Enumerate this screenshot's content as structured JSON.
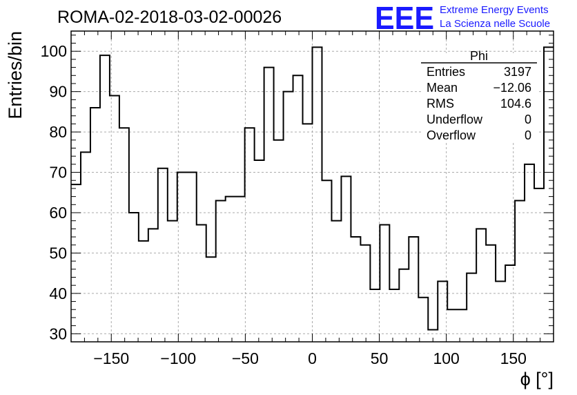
{
  "chart_data": {
    "type": "histogram",
    "title": "ROMA-02-2018-03-02-00026",
    "xlabel": "ϕ [°]",
    "ylabel": "Entries/bin",
    "xlim": [
      -180,
      180
    ],
    "ylim": [
      28,
      105
    ],
    "grid": true,
    "bin_width": 7.2,
    "x_ticks": [
      -150,
      -100,
      -50,
      0,
      50,
      100,
      150
    ],
    "x_tick_labels": [
      "−150",
      "−100",
      "−50",
      "0",
      "50",
      "100",
      "150"
    ],
    "y_ticks": [
      30,
      40,
      50,
      60,
      70,
      80,
      90,
      100
    ],
    "y_tick_labels": [
      "30",
      "40",
      "50",
      "60",
      "70",
      "80",
      "90",
      "100"
    ],
    "values": [
      67,
      75,
      86,
      99,
      89,
      81,
      60,
      53,
      56,
      71,
      58,
      70,
      70,
      57,
      49,
      63,
      64,
      64,
      81,
      73,
      96,
      78,
      90,
      94,
      82,
      101,
      68,
      58,
      69,
      54,
      52,
      41,
      57,
      41,
      46,
      54,
      39,
      31,
      43,
      36,
      36,
      45,
      56,
      52,
      43,
      47,
      63,
      72,
      66,
      101
    ],
    "stats": {
      "name": "Phi",
      "rows": [
        {
          "label": "Entries",
          "value": "3197"
        },
        {
          "label": "Mean",
          "value": "−12.06"
        },
        {
          "label": "RMS",
          "value": "104.6"
        },
        {
          "label": "Underflow",
          "value": "0"
        },
        {
          "label": "Overflow",
          "value": "0"
        }
      ]
    }
  },
  "logo": {
    "mark": "EEE",
    "line1": "Extreme Energy Events",
    "line2": "La Scienza nelle Scuole",
    "color": "#1a1aff"
  }
}
